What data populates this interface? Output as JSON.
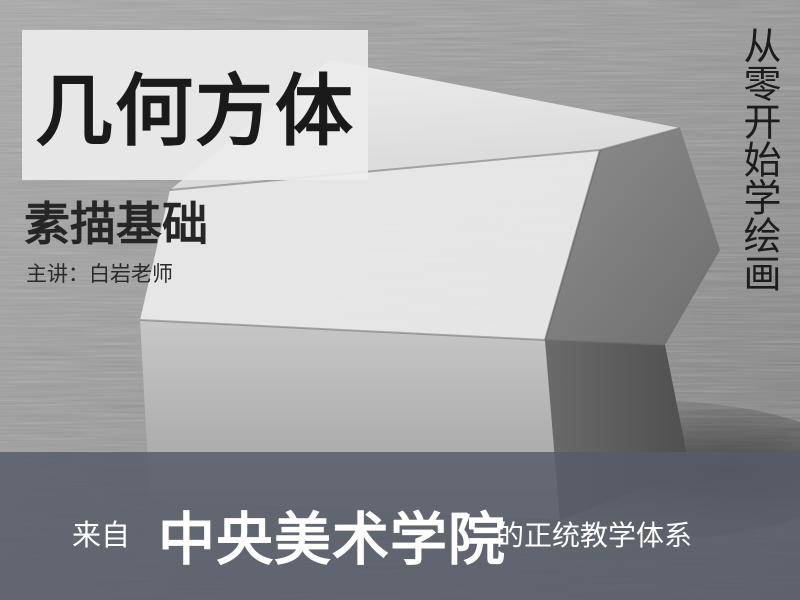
{
  "cover": {
    "title": "几何方体",
    "subtitle": "素描基础",
    "lecturer": "主讲：白岩老师",
    "vertical_slogan": "从零开始学绘画"
  },
  "banner": {
    "prefix": "来自",
    "academy": "中央美术学院",
    "suffix": "的正统教学体系"
  },
  "colors": {
    "background_gray": "#8f8f8f",
    "title_box": "#ececec",
    "banner_slate": "#565c68",
    "banner_text": "#ffffff",
    "title_text": "#1a1a1a"
  }
}
